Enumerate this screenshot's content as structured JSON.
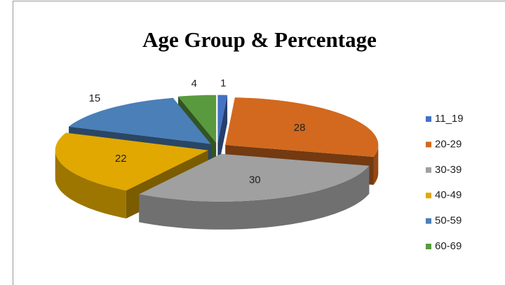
{
  "chart_data": {
    "type": "pie3d",
    "title": "Age Group & Percentage",
    "categories": [
      "11_19",
      "20-29",
      "30-39",
      "40-49",
      "50-59",
      "60-69"
    ],
    "values": [
      1,
      28,
      30,
      22,
      15,
      4
    ],
    "colors": [
      "#4472c4",
      "#d2691e",
      "#a0a0a0",
      "#e0a800",
      "#4a7fb8",
      "#5a9a3e"
    ],
    "legend": "right"
  }
}
